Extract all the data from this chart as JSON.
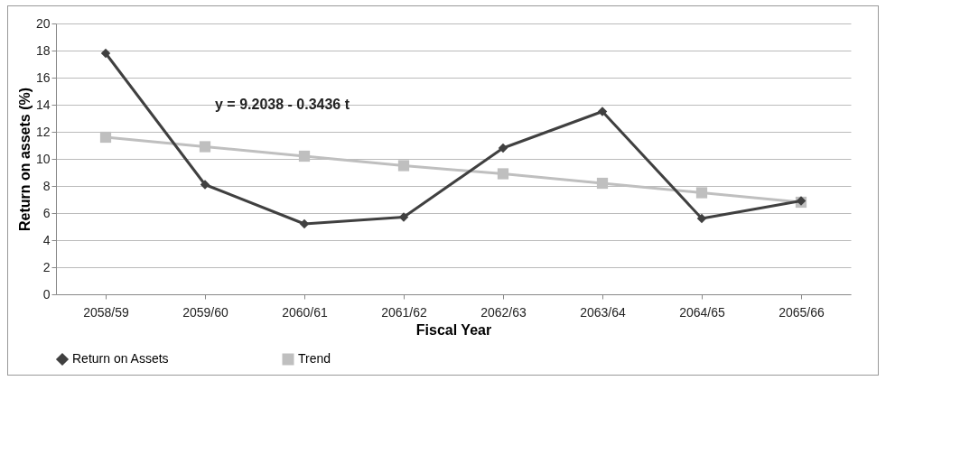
{
  "chart_data": {
    "type": "line",
    "xlabel": "Fiscal Year",
    "ylabel": "Return on assets (%)",
    "categories": [
      "2058/59",
      "2059/60",
      "2060/61",
      "2061/62",
      "2062/63",
      "2063/64",
      "2064/65",
      "2065/66"
    ],
    "series": [
      {
        "name": "Return on Assets",
        "color": "#404040",
        "marker": "diamond",
        "values": [
          17.8,
          8.1,
          5.2,
          5.7,
          10.8,
          13.5,
          5.6,
          6.9
        ]
      },
      {
        "name": "Trend",
        "color": "#bfbfbf",
        "marker": "square",
        "values": [
          11.6,
          10.9,
          10.2,
          9.5,
          8.9,
          8.2,
          7.5,
          6.8
        ]
      }
    ],
    "ylim": [
      0,
      20
    ],
    "yticks": [
      0,
      2,
      4,
      6,
      8,
      10,
      12,
      14,
      16,
      18,
      20
    ],
    "grid": "y",
    "legend": "bottom",
    "annotations": [
      "y = 9.2038 - 0.3436 t"
    ]
  }
}
